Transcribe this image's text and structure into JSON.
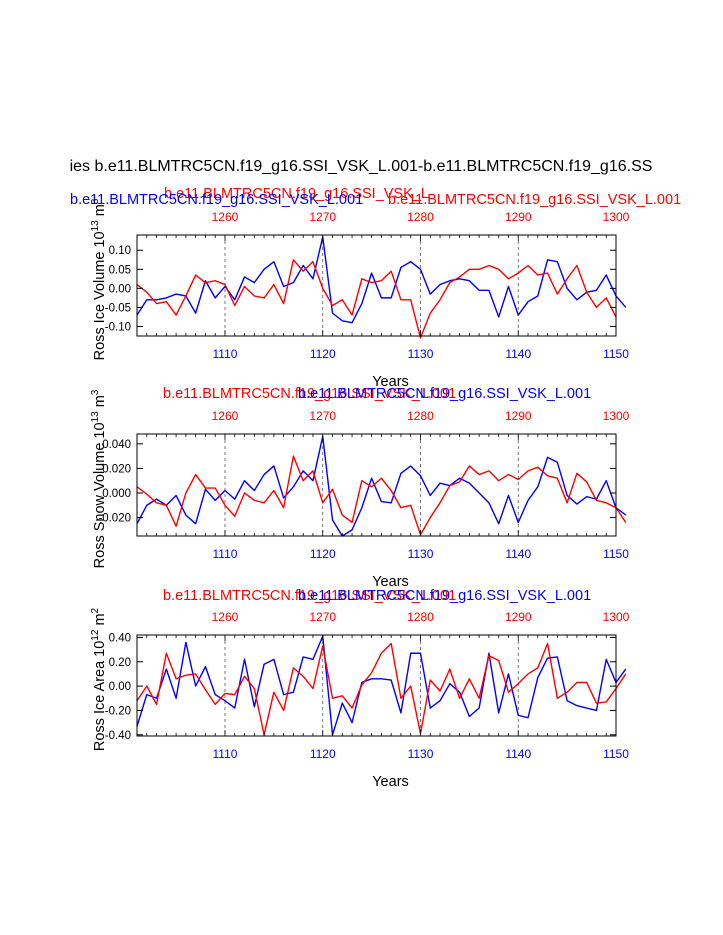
{
  "figure": {
    "main_title": "ies b.e11.BLMTRC5CN.f19_g16.SSI_VSK_L.001-b.e11.BLMTRC5CN.f19_g16.SS",
    "title_blue": "b.e11.BLMTRC5CN.f19_g16.SSI_VSK_L.001",
    "title_red_top": "b.e11.BLMTRC5CN.f19_g16.SSI_VSK_L",
    "title_red_top_overlap": "b.e11.BLMTRC5CN.f19_g16.SSI_VSK_L.001",
    "title_red": "b.e11.BLMTRC5CN.f19_g16.SSI_VSK_L.001",
    "colors": {
      "series_a": "#0000ff",
      "series_b": "#ff0000",
      "axis": "#000000"
    }
  },
  "chart_data": [
    {
      "type": "line",
      "ylabel": "Ross Ice Volume 10",
      "ylabel_exp": "13",
      "ylabel_unit": " m",
      "ylabel_unit_exp": "3",
      "xlabel": "Years",
      "x_bottom": {
        "range": [
          1101,
          1150
        ],
        "ticks": [
          1110,
          1120,
          1130,
          1140,
          1150
        ]
      },
      "x_top": {
        "range": [
          1251,
          1300
        ],
        "ticks": [
          1260,
          1270,
          1280,
          1290,
          1300
        ]
      },
      "ylim": [
        -0.125,
        0.14
      ],
      "yticks": [
        0.1,
        0.05,
        0.0,
        -0.05,
        -0.1
      ],
      "ytick_labels": [
        "0.10",
        "0.05",
        "0.00",
        "-0.05",
        "-0.10"
      ],
      "vgrid_bottom": [
        1110,
        1120,
        1130,
        1140
      ],
      "series": [
        {
          "values": [
            -0.07,
            -0.03,
            -0.03,
            -0.025,
            -0.015,
            -0.02,
            -0.065,
            0.02,
            -0.025,
            0.005,
            -0.03,
            0.03,
            0.015,
            0.05,
            0.07,
            0.005,
            0.015,
            0.06,
            0.025,
            0.135,
            -0.065,
            -0.085,
            -0.09,
            -0.04,
            0.04,
            -0.025,
            -0.025,
            0.055,
            0.07,
            0.05,
            -0.015,
            0.01,
            0.02,
            0.025,
            0.02,
            -0.005,
            -0.005,
            -0.075,
            0.005,
            -0.07,
            -0.035,
            -0.02,
            0.075,
            0.07,
            0.0,
            -0.03,
            -0.01,
            -0.005,
            0.035,
            -0.02,
            -0.05
          ]
        },
        {
          "values": [
            0.01,
            -0.01,
            -0.04,
            -0.035,
            -0.07,
            -0.02,
            0.035,
            0.015,
            0.02,
            0.01,
            -0.045,
            0.005,
            -0.02,
            -0.025,
            0.01,
            -0.04,
            0.075,
            0.045,
            0.07,
            0.0,
            -0.045,
            -0.03,
            -0.07,
            0.025,
            0.015,
            0.02,
            0.045,
            -0.03,
            -0.03,
            -0.13,
            -0.065,
            -0.03,
            0.015,
            0.03,
            0.05,
            0.05,
            0.06,
            0.05,
            0.025,
            0.04,
            0.06,
            0.035,
            0.04,
            -0.015,
            0.025,
            0.06,
            -0.01,
            -0.05,
            -0.025,
            -0.075
          ]
        }
      ]
    },
    {
      "type": "line",
      "ylabel": "Ross Snow Volume 10",
      "ylabel_exp": "13",
      "ylabel_unit": " m",
      "ylabel_unit_exp": "3",
      "xlabel": "Years",
      "x_bottom": {
        "range": [
          1101,
          1150
        ],
        "ticks": [
          1110,
          1120,
          1130,
          1140,
          1150
        ]
      },
      "x_top": {
        "range": [
          1251,
          1300
        ],
        "ticks": [
          1260,
          1270,
          1280,
          1290,
          1300
        ]
      },
      "ylim": [
        -0.035,
        0.048
      ],
      "yticks": [
        0.04,
        0.02,
        0.0,
        -0.02
      ],
      "ytick_labels": [
        "0.040",
        "0.020",
        "0.000",
        "-0.020"
      ],
      "vgrid_bottom": [
        1110,
        1120,
        1130,
        1140
      ],
      "series": [
        {
          "values": [
            -0.025,
            -0.01,
            -0.005,
            -0.01,
            -0.002,
            -0.018,
            -0.025,
            0.003,
            -0.006,
            0.002,
            -0.005,
            0.01,
            0.002,
            0.015,
            0.022,
            -0.004,
            0.005,
            0.018,
            0.01,
            0.046,
            -0.022,
            -0.035,
            -0.03,
            -0.012,
            0.012,
            -0.007,
            -0.008,
            0.016,
            0.022,
            0.014,
            -0.002,
            0.008,
            0.006,
            0.012,
            0.008,
            0.0,
            -0.008,
            -0.025,
            -0.002,
            -0.024,
            -0.006,
            0.005,
            0.029,
            0.025,
            -0.002,
            -0.009,
            -0.003,
            -0.005,
            0.01,
            -0.012,
            -0.018
          ]
        },
        {
          "values": [
            0.005,
            -0.001,
            -0.008,
            -0.01,
            -0.027,
            0.0,
            0.015,
            0.004,
            0.004,
            -0.01,
            -0.019,
            0.0,
            -0.006,
            -0.008,
            0.002,
            -0.012,
            0.03,
            0.01,
            0.018,
            -0.008,
            0.003,
            -0.018,
            -0.024,
            0.01,
            0.005,
            0.012,
            0.002,
            -0.012,
            -0.01,
            -0.034,
            -0.02,
            -0.008,
            0.006,
            0.009,
            0.022,
            0.015,
            0.018,
            0.01,
            0.015,
            0.011,
            0.018,
            0.021,
            0.014,
            0.012,
            -0.008,
            0.016,
            0.009,
            -0.006,
            -0.008,
            -0.012,
            -0.024
          ]
        }
      ]
    },
    {
      "type": "line",
      "ylabel": "Ross Ice Area 10",
      "ylabel_exp": "12",
      "ylabel_unit": " m",
      "ylabel_unit_exp": "2",
      "xlabel": "Years",
      "x_bottom": {
        "range": [
          1101,
          1150
        ],
        "ticks": [
          1110,
          1120,
          1130,
          1140,
          1150
        ]
      },
      "x_top": {
        "range": [
          1251,
          1300
        ],
        "ticks": [
          1260,
          1270,
          1280,
          1290,
          1300
        ]
      },
      "ylim": [
        -0.41,
        0.42
      ],
      "yticks": [
        0.4,
        0.2,
        0.0,
        -0.2,
        -0.4
      ],
      "ytick_labels": [
        "0.40",
        "0.20",
        "0.00",
        "-0.20",
        "-0.40"
      ],
      "vgrid_bottom": [
        1110,
        1120,
        1130,
        1140
      ],
      "series": [
        {
          "values": [
            -0.33,
            -0.07,
            -0.1,
            0.14,
            -0.1,
            0.36,
            0.0,
            0.16,
            -0.07,
            -0.12,
            -0.18,
            0.22,
            -0.17,
            0.18,
            0.22,
            -0.07,
            -0.05,
            0.24,
            0.22,
            0.41,
            -0.4,
            -0.14,
            -0.3,
            0.03,
            0.06,
            0.06,
            0.05,
            -0.22,
            0.27,
            0.27,
            -0.18,
            -0.12,
            0.02,
            -0.05,
            -0.25,
            -0.18,
            0.27,
            -0.22,
            0.1,
            -0.24,
            -0.26,
            0.07,
            0.23,
            0.24,
            -0.12,
            -0.16,
            -0.18,
            -0.2,
            0.22,
            0.03,
            0.14
          ]
        },
        {
          "values": [
            -0.12,
            0.0,
            -0.15,
            0.27,
            0.06,
            0.09,
            0.1,
            -0.03,
            -0.15,
            -0.06,
            -0.07,
            0.08,
            -0.02,
            -0.4,
            -0.05,
            -0.2,
            0.15,
            0.08,
            -0.02,
            0.33,
            -0.1,
            -0.08,
            -0.18,
            0.01,
            0.11,
            0.27,
            0.35,
            -0.1,
            0.0,
            -0.39,
            0.05,
            -0.04,
            0.14,
            -0.1,
            0.06,
            -0.1,
            0.25,
            0.21,
            -0.05,
            0.02,
            0.1,
            0.15,
            0.35,
            -0.1,
            -0.05,
            0.03,
            0.03,
            -0.14,
            -0.13,
            -0.02,
            0.1
          ]
        }
      ]
    }
  ]
}
